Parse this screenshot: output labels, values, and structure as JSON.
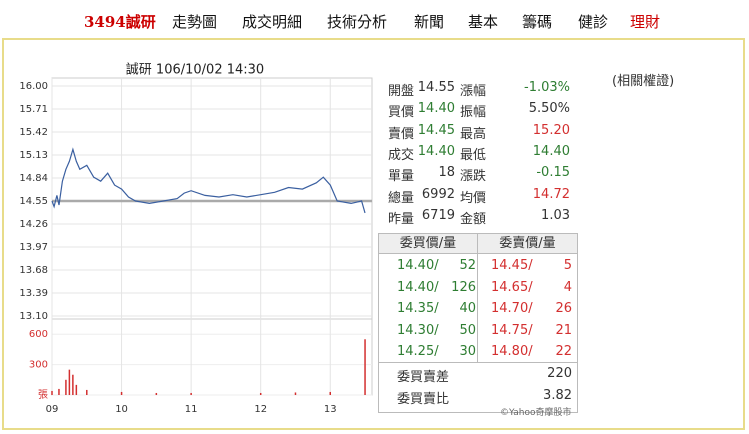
{
  "nav": [
    "3494誠研",
    "走勢圖",
    "成交明細",
    "技術分析",
    "新聞",
    "基本",
    "籌碼",
    "健診",
    "理財"
  ],
  "related": "(相關權證)",
  "chart_data": {
    "type": "line",
    "title": "誠研 106/10/02 14:30",
    "x": [
      9.0,
      9.03,
      9.07,
      9.1,
      9.15,
      9.2,
      9.25,
      9.3,
      9.35,
      9.4,
      9.5,
      9.6,
      9.7,
      9.8,
      9.9,
      10.0,
      10.1,
      10.2,
      10.4,
      10.6,
      10.8,
      10.9,
      11.0,
      11.2,
      11.4,
      11.6,
      11.8,
      12.0,
      12.2,
      12.4,
      12.6,
      12.8,
      12.9,
      13.0,
      13.1,
      13.3,
      13.45,
      13.5
    ],
    "values": [
      14.55,
      14.48,
      14.62,
      14.5,
      14.8,
      14.95,
      15.05,
      15.2,
      15.05,
      14.95,
      15.0,
      14.85,
      14.8,
      14.9,
      14.75,
      14.7,
      14.6,
      14.55,
      14.52,
      14.55,
      14.58,
      14.65,
      14.68,
      14.62,
      14.6,
      14.63,
      14.6,
      14.63,
      14.66,
      14.72,
      14.7,
      14.78,
      14.85,
      14.75,
      14.55,
      14.52,
      14.55,
      14.4
    ],
    "color": "#3a5fa0",
    "reference": 14.55,
    "xlim": [
      9,
      13.6
    ],
    "xticks": [
      {
        "value": 9,
        "label": "09"
      },
      10,
      11,
      12,
      13
    ],
    "ylim": [
      13.1,
      16
    ],
    "yticks": [
      {
        "value": 16,
        "label": "16.00"
      },
      15.71,
      15.42,
      15.13,
      14.84,
      14.55,
      14.26,
      13.97,
      13.68,
      13.39,
      {
        "value": 13.1,
        "label": "13.10"
      }
    ],
    "volume": {
      "x": [
        9.0,
        9.1,
        9.2,
        9.25,
        9.3,
        9.35,
        9.5,
        10.0,
        10.5,
        11.0,
        12.0,
        12.5,
        13.0,
        13.5
      ],
      "values": [
        40,
        60,
        150,
        250,
        200,
        100,
        50,
        30,
        20,
        20,
        20,
        25,
        30,
        550
      ],
      "color": "#d32f2f"
    },
    "y2lim": [
      0,
      750
    ],
    "y2ticks": [
      {
        "value": 0,
        "label": "張"
      },
      300,
      600
    ],
    "grid": true
  },
  "quote": [
    [
      "開盤",
      "14.55",
      "漲幅",
      "-1.03%"
    ],
    [
      "買價",
      "14.40",
      "振幅",
      "5.50%"
    ],
    [
      "賣價",
      "14.45",
      "最高",
      "15.20"
    ],
    [
      "成交",
      "14.40",
      "最低",
      "14.40"
    ],
    [
      "單量",
      "18",
      "漲跌",
      "-0.15"
    ],
    [
      "總量",
      "6992",
      "均價",
      "14.72"
    ],
    [
      "昨量",
      "6719",
      "金額",
      "1.03"
    ]
  ],
  "book": {
    "headers": [
      "委買價/量",
      "委賣價/量"
    ],
    "rows": [
      [
        "14.40/",
        "52",
        "14.45/",
        "5"
      ],
      [
        "14.40/",
        "126",
        "14.65/",
        "4"
      ],
      [
        "14.35/",
        "40",
        "14.70/",
        "26"
      ],
      [
        "14.30/",
        "50",
        "14.75/",
        "21"
      ],
      [
        "14.25/",
        "30",
        "14.80/",
        "22"
      ]
    ],
    "summary": [
      [
        "委買賣差",
        "220"
      ],
      [
        "委買賣比",
        "3.82"
      ]
    ]
  },
  "credit": "©Yahoo奇摩股市"
}
